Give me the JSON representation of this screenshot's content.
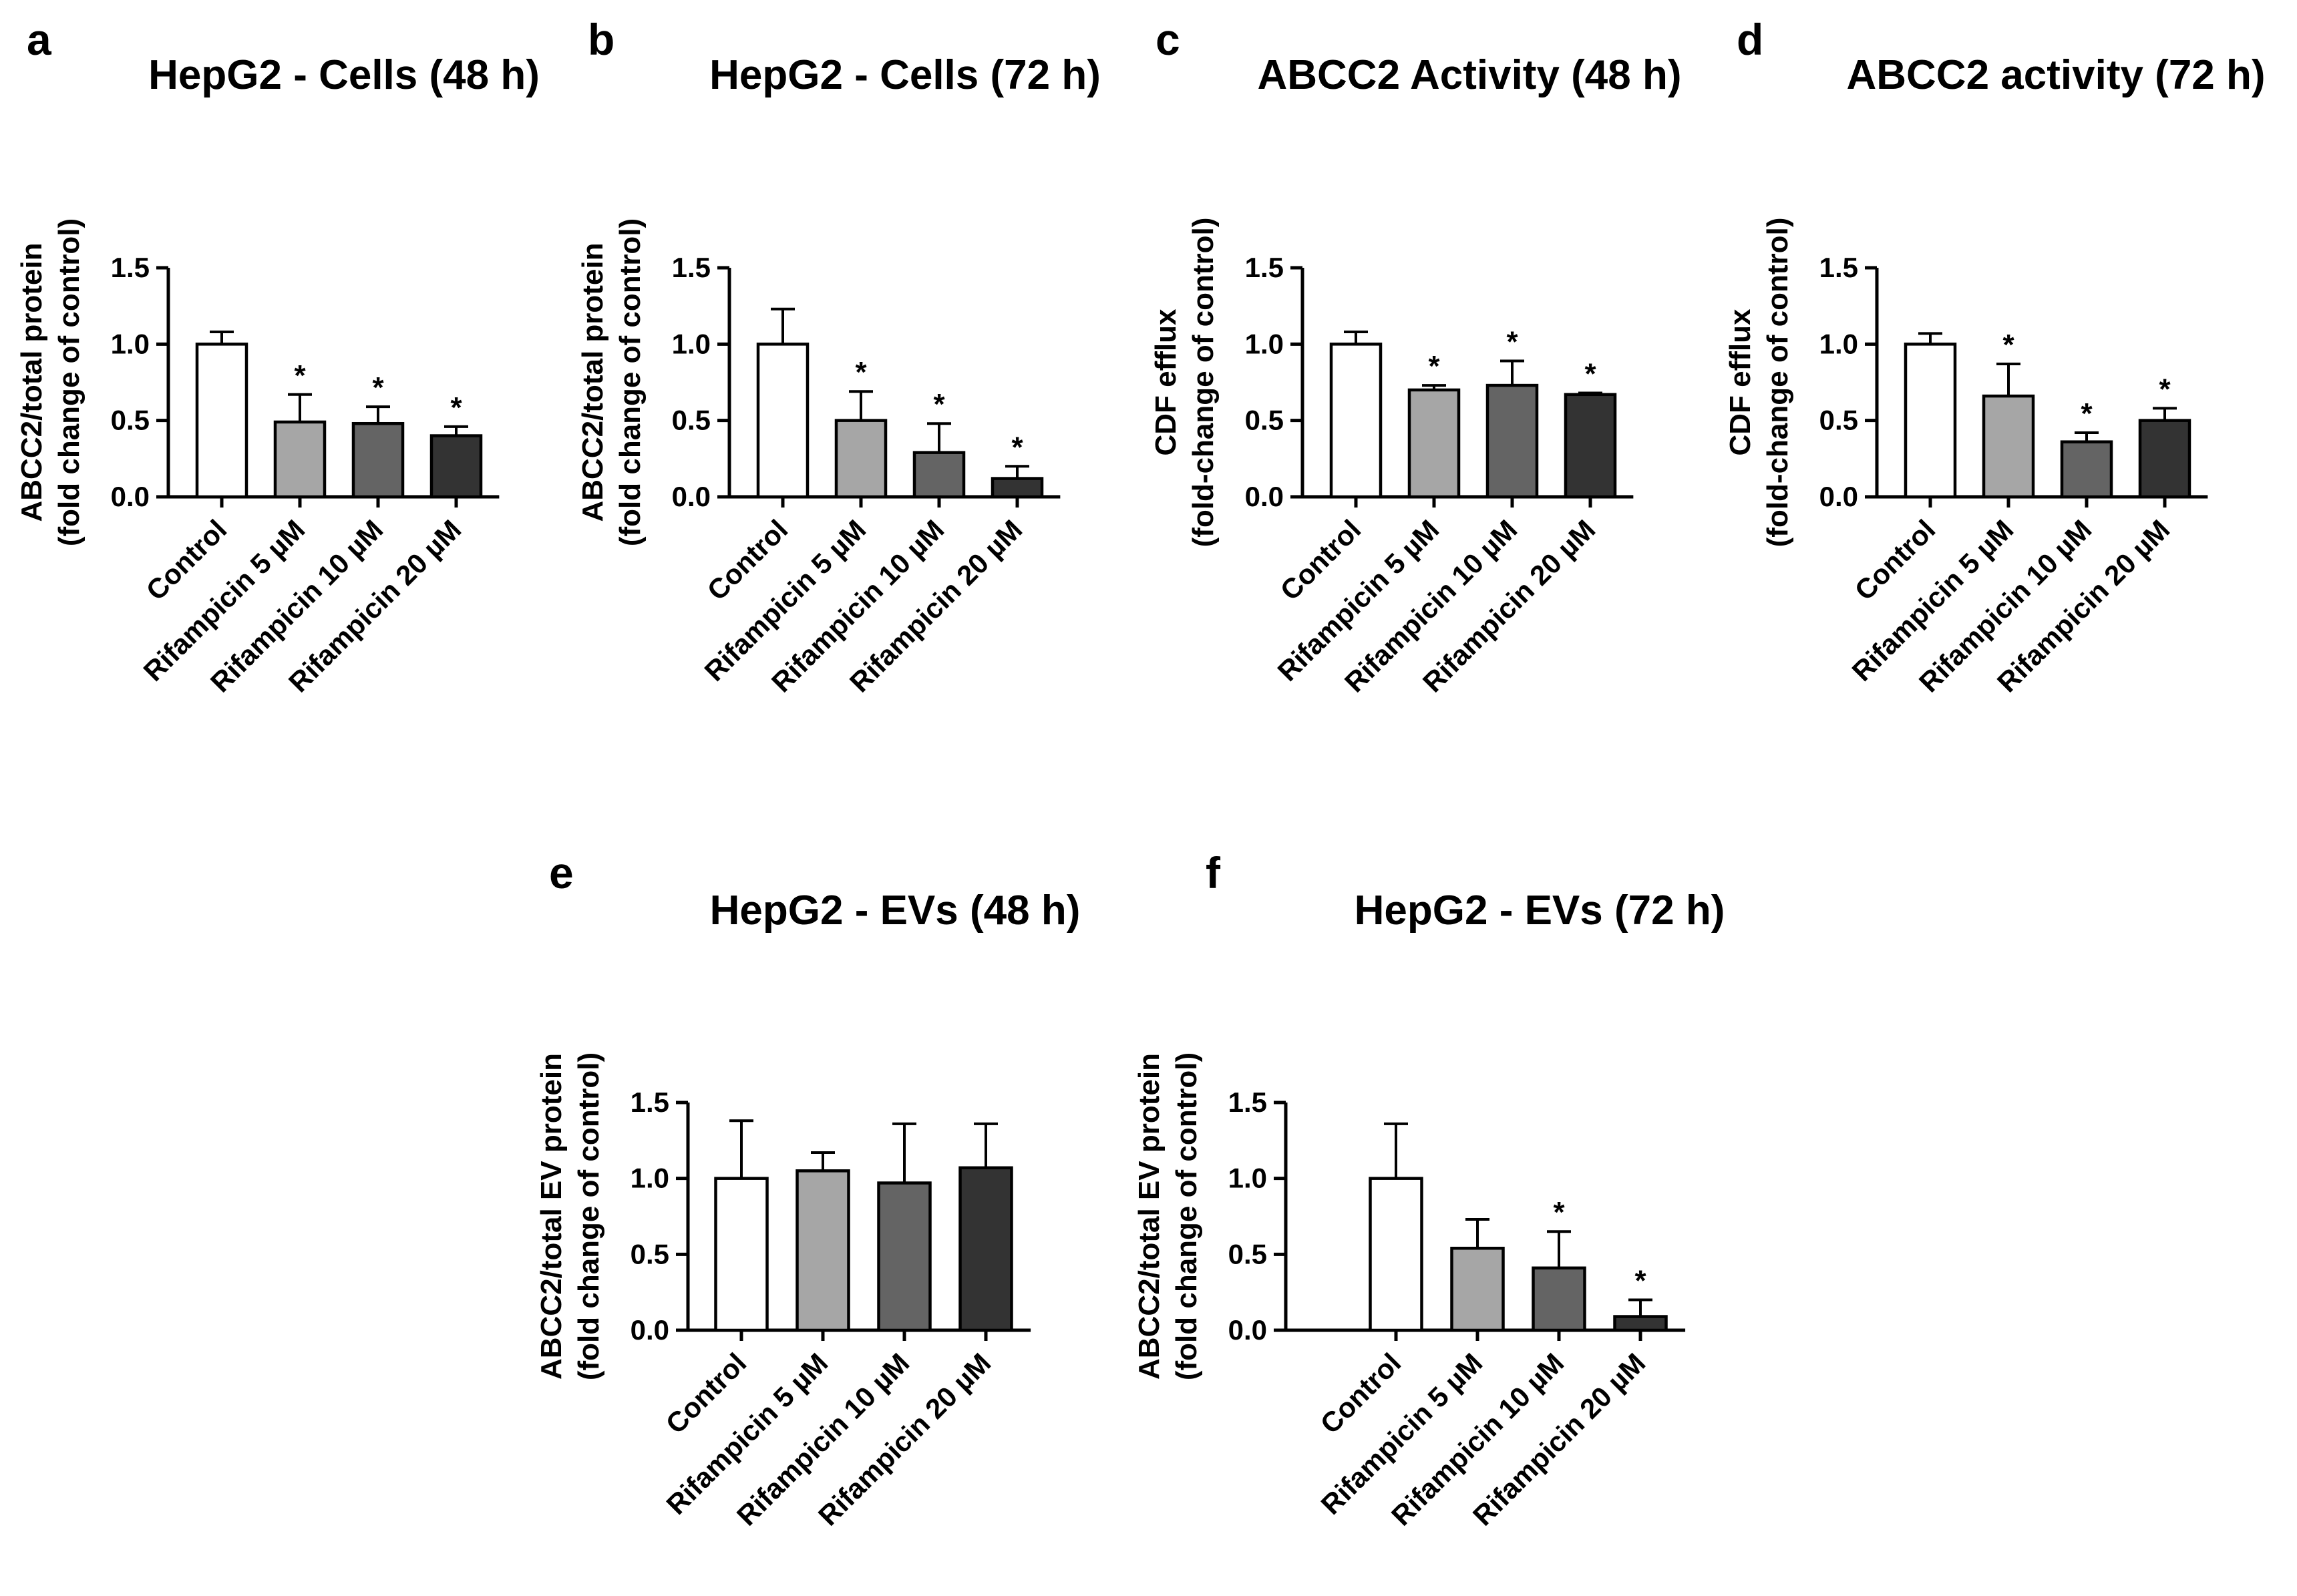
{
  "figure": {
    "colors": {
      "bar_fills": [
        "#ffffff",
        "#a6a6a6",
        "#646464",
        "#333333"
      ],
      "stroke": "#000000"
    }
  },
  "chart_data": [
    {
      "panel": "a",
      "type": "bar",
      "title": "HepG2 - Cells (48 h)",
      "ylabel": [
        "ABCC2/total protein",
        "(fold change of control)"
      ],
      "categories": [
        "Control",
        "Rifampicin 5 µM",
        "Rifampicin 10 µM",
        "Rifampicin 20 µM"
      ],
      "values": [
        1.0,
        0.49,
        0.48,
        0.4
      ],
      "errors": [
        0.08,
        0.18,
        0.11,
        0.06
      ],
      "significance": [
        "",
        "*",
        "*",
        "*"
      ],
      "ylim": [
        0,
        1.5
      ],
      "yticks": [
        "0.0",
        "0.5",
        "1.0",
        "1.5"
      ]
    },
    {
      "panel": "b",
      "type": "bar",
      "title": "HepG2 - Cells (72 h)",
      "ylabel": [
        "ABCC2/total protein",
        "(fold change of control)"
      ],
      "categories": [
        "Control",
        "Rifampicin 5 µM",
        "Rifampicin 10 µM",
        "Rifampicin 20 µM"
      ],
      "values": [
        1.0,
        0.5,
        0.29,
        0.12
      ],
      "errors": [
        0.23,
        0.19,
        0.19,
        0.08
      ],
      "significance": [
        "",
        "*",
        "*",
        "*"
      ],
      "ylim": [
        0,
        1.5
      ],
      "yticks": [
        "0.0",
        "0.5",
        "1.0",
        "1.5"
      ]
    },
    {
      "panel": "c",
      "type": "bar",
      "title": "ABCC2 Activity (48 h)",
      "ylabel": [
        "CDF efflux",
        "(fold-change of control)"
      ],
      "categories": [
        "Control",
        "Rifampicin 5 µM",
        "Rifampicin 10 µM",
        "Rifampicin 20 µM"
      ],
      "values": [
        1.0,
        0.7,
        0.73,
        0.67
      ],
      "errors": [
        0.08,
        0.03,
        0.16,
        0.01
      ],
      "significance": [
        "",
        "*",
        "*",
        "*"
      ],
      "ylim": [
        0,
        1.5
      ],
      "yticks": [
        "0.0",
        "0.5",
        "1.0",
        "1.5"
      ]
    },
    {
      "panel": "d",
      "type": "bar",
      "title": "ABCC2 activity (72 h)",
      "ylabel": [
        "CDF efflux",
        "(fold-change of control)"
      ],
      "categories": [
        "Control",
        "Rifampicin 5 µM",
        "Rifampicin 10 µM",
        "Rifampicin 20 µM"
      ],
      "values": [
        1.0,
        0.66,
        0.36,
        0.5
      ],
      "errors": [
        0.07,
        0.21,
        0.06,
        0.08
      ],
      "significance": [
        "",
        "*",
        "*",
        "*"
      ],
      "ylim": [
        0,
        1.5
      ],
      "yticks": [
        "0.0",
        "0.5",
        "1.0",
        "1.5"
      ]
    },
    {
      "panel": "e",
      "type": "bar",
      "title": "HepG2 -  EVs (48 h)",
      "ylabel": [
        "ABCC2/total EV protein",
        "(fold change of control)"
      ],
      "categories": [
        "Control",
        "Rifampicin 5 µM",
        "Rifampicin 10 µM",
        "Rifampicin 20 µM"
      ],
      "values": [
        1.0,
        1.05,
        0.97,
        1.07
      ],
      "errors": [
        0.38,
        0.12,
        0.39,
        0.29
      ],
      "significance": [
        "",
        "",
        "",
        ""
      ],
      "ylim": [
        0,
        1.5
      ],
      "yticks": [
        "0.0",
        "0.5",
        "1.0",
        "1.5"
      ]
    },
    {
      "panel": "f",
      "type": "bar",
      "title": "HepG2 - EVs (72 h)",
      "ylabel": [
        "ABCC2/total EV protein",
        "(fold change of control)"
      ],
      "categories": [
        "Control",
        "Rifampicin 5 µM",
        "Rifampicin 10 µM",
        "Rifampicin 20 µM"
      ],
      "values": [
        1.0,
        0.54,
        0.41,
        0.09
      ],
      "errors": [
        0.36,
        0.19,
        0.24,
        0.11
      ],
      "significance": [
        "",
        "",
        "*",
        "*"
      ],
      "ylim": [
        0,
        1.5
      ],
      "yticks": [
        "0.0",
        "0.5",
        "1.0",
        "1.5"
      ]
    }
  ]
}
